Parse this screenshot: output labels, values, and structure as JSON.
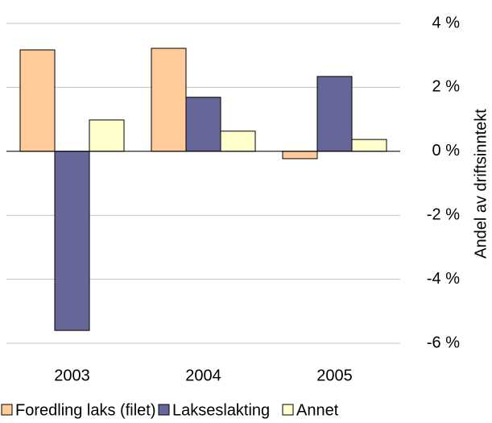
{
  "chart_data": {
    "type": "bar",
    "y_label": "Andel av driftsinntekt",
    "categories": [
      "2003",
      "2004",
      "2005"
    ],
    "series": [
      {
        "name": "Foredling laks (filet)",
        "color": "#ffcc99",
        "values": [
          3.17,
          3.22,
          -0.23
        ]
      },
      {
        "name": "Lakseslakting",
        "color": "#666699",
        "values": [
          -5.6,
          1.69,
          2.34
        ]
      },
      {
        "name": "Annet",
        "color": "#ffffcc",
        "values": [
          0.98,
          0.63,
          0.37
        ]
      }
    ],
    "ylim": [
      -6,
      4
    ],
    "yticks": [
      {
        "value": -6,
        "label": "-6 %"
      },
      {
        "value": -4,
        "label": "-4 %"
      },
      {
        "value": -2,
        "label": "-2 %"
      },
      {
        "value": 0,
        "label": "0 %"
      },
      {
        "value": 2,
        "label": "2 %"
      },
      {
        "value": 4,
        "label": "4 %"
      }
    ],
    "grid": true,
    "legend": "bottom"
  }
}
